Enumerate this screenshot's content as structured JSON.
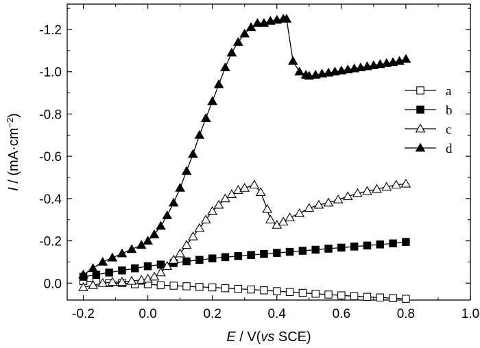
{
  "chart_data": {
    "type": "line",
    "xlabel": {
      "var": "E",
      "rest": " / V(",
      "italic": "vs",
      "tail": " SCE)"
    },
    "ylabel": {
      "var": "I",
      "rest": " / (mA·cm",
      "sup": "−2",
      "tail": ")"
    },
    "xlim": [
      -0.25,
      1.0
    ],
    "ylim": [
      0.08,
      -1.32
    ],
    "x_ticks": [
      -0.2,
      0.0,
      0.2,
      0.4,
      0.6,
      0.8,
      1.0
    ],
    "x_tick_labels": [
      "-0.2",
      "0.0",
      "0.2",
      "0.4",
      "0.6",
      "0.8",
      "1.0"
    ],
    "y_ticks": [
      0.0,
      -0.2,
      -0.4,
      -0.6,
      -0.8,
      -1.0,
      -1.2
    ],
    "y_tick_labels": [
      "0.0",
      "-0.2",
      "-0.4",
      "-0.6",
      "-0.8",
      "-1.0",
      "-1.2"
    ],
    "legend_position": "right",
    "series": [
      {
        "name": "a",
        "marker": "square-open",
        "x": [
          -0.2,
          -0.16,
          -0.12,
          -0.08,
          -0.04,
          0.0,
          0.04,
          0.08,
          0.12,
          0.16,
          0.2,
          0.24,
          0.28,
          0.32,
          0.36,
          0.4,
          0.44,
          0.48,
          0.52,
          0.56,
          0.6,
          0.64,
          0.68,
          0.72,
          0.76,
          0.8
        ],
        "y": [
          -0.01,
          -0.005,
          0.0,
          0.0,
          0.005,
          0.005,
          0.01,
          0.012,
          0.015,
          0.018,
          0.02,
          0.024,
          0.027,
          0.03,
          0.034,
          0.038,
          0.042,
          0.046,
          0.05,
          0.054,
          0.058,
          0.062,
          0.065,
          0.068,
          0.071,
          0.074
        ]
      },
      {
        "name": "b",
        "marker": "square-filled",
        "x": [
          -0.2,
          -0.16,
          -0.12,
          -0.08,
          -0.04,
          0.0,
          0.04,
          0.08,
          0.12,
          0.16,
          0.2,
          0.24,
          0.28,
          0.32,
          0.36,
          0.4,
          0.44,
          0.48,
          0.52,
          0.56,
          0.6,
          0.64,
          0.68,
          0.72,
          0.76,
          0.8
        ],
        "y": [
          -0.03,
          -0.04,
          -0.05,
          -0.06,
          -0.07,
          -0.08,
          -0.088,
          -0.095,
          -0.103,
          -0.11,
          -0.117,
          -0.123,
          -0.128,
          -0.133,
          -0.138,
          -0.143,
          -0.148,
          -0.153,
          -0.158,
          -0.163,
          -0.168,
          -0.173,
          -0.178,
          -0.183,
          -0.188,
          -0.195
        ]
      },
      {
        "name": "c",
        "marker": "triangle-open",
        "x": [
          -0.2,
          -0.17,
          -0.14,
          -0.11,
          -0.08,
          -0.05,
          -0.02,
          0.0,
          0.02,
          0.04,
          0.06,
          0.08,
          0.1,
          0.12,
          0.14,
          0.16,
          0.18,
          0.2,
          0.22,
          0.24,
          0.26,
          0.28,
          0.3,
          0.33,
          0.35,
          0.37,
          0.38,
          0.4,
          0.42,
          0.44,
          0.47,
          0.5,
          0.53,
          0.56,
          0.59,
          0.62,
          0.65,
          0.68,
          0.71,
          0.74,
          0.77,
          0.8
        ],
        "y": [
          0.02,
          0.01,
          0.0,
          -0.005,
          -0.005,
          -0.01,
          -0.015,
          -0.02,
          -0.03,
          -0.05,
          -0.08,
          -0.11,
          -0.14,
          -0.18,
          -0.22,
          -0.26,
          -0.3,
          -0.34,
          -0.37,
          -0.4,
          -0.42,
          -0.44,
          -0.45,
          -0.465,
          -0.43,
          -0.35,
          -0.3,
          -0.275,
          -0.29,
          -0.31,
          -0.33,
          -0.355,
          -0.37,
          -0.38,
          -0.395,
          -0.41,
          -0.425,
          -0.435,
          -0.445,
          -0.455,
          -0.465,
          -0.47
        ]
      },
      {
        "name": "d",
        "marker": "triangle-filled",
        "x": [
          -0.2,
          -0.17,
          -0.14,
          -0.11,
          -0.08,
          -0.05,
          -0.02,
          0.0,
          0.02,
          0.04,
          0.06,
          0.08,
          0.1,
          0.12,
          0.14,
          0.16,
          0.18,
          0.2,
          0.22,
          0.24,
          0.26,
          0.28,
          0.3,
          0.32,
          0.34,
          0.36,
          0.38,
          0.4,
          0.42,
          0.43,
          0.45,
          0.47,
          0.49,
          0.5,
          0.52,
          0.54,
          0.56,
          0.58,
          0.6,
          0.62,
          0.64,
          0.66,
          0.68,
          0.7,
          0.72,
          0.74,
          0.76,
          0.78,
          0.8
        ],
        "y": [
          -0.04,
          -0.07,
          -0.1,
          -0.12,
          -0.14,
          -0.16,
          -0.18,
          -0.2,
          -0.23,
          -0.27,
          -0.32,
          -0.38,
          -0.45,
          -0.53,
          -0.61,
          -0.7,
          -0.78,
          -0.86,
          -0.94,
          -1.02,
          -1.09,
          -1.14,
          -1.18,
          -1.21,
          -1.23,
          -1.23,
          -1.24,
          -1.245,
          -1.25,
          -1.25,
          -1.05,
          -1.0,
          -0.985,
          -0.98,
          -0.985,
          -0.99,
          -0.995,
          -1.0,
          -1.005,
          -1.01,
          -1.015,
          -1.02,
          -1.025,
          -1.03,
          -1.035,
          -1.04,
          -1.045,
          -1.05,
          -1.06
        ]
      }
    ]
  }
}
